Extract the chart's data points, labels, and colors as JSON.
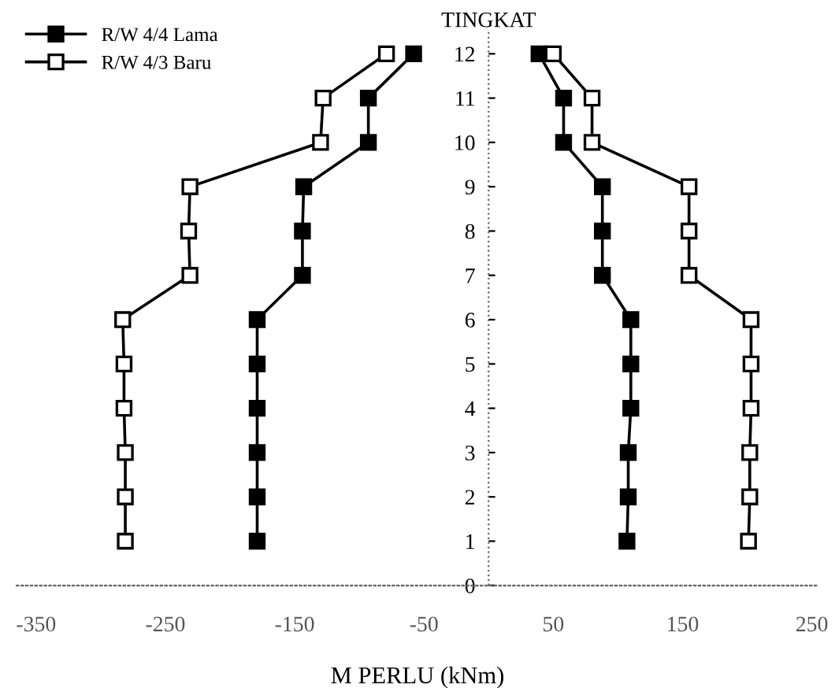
{
  "chart_data": {
    "type": "line",
    "orientation": "horizontal",
    "xlabel": "M PERLU (kNm)",
    "ylabel": "TINGKAT",
    "x": [
      12,
      11,
      10,
      9,
      8,
      7,
      6,
      5,
      4,
      3,
      2,
      1
    ],
    "series": [
      {
        "name": "R/W 4/4 Lama",
        "color": "#000000",
        "marker": "square",
        "values": [
          -58,
          -93,
          -93,
          -143,
          -144,
          -144,
          -179,
          -179,
          -179,
          -179,
          -179,
          -179
        ]
      },
      {
        "name": "R/W 4/3 Baru",
        "color": "#000000",
        "marker": "square",
        "values": [
          -79,
          -128,
          -130,
          -231,
          -232,
          -231,
          -283,
          -282,
          -282,
          -281,
          -281,
          -281
        ]
      },
      {
        "color": "#000000",
        "marker": "square",
        "values": [
          39,
          58,
          58,
          88,
          88,
          88,
          110,
          110,
          110,
          108,
          108,
          107
        ]
      },
      {
        "color": "#000000",
        "marker": "square",
        "values": [
          50,
          80,
          80,
          155,
          155,
          155,
          203,
          203,
          203,
          202,
          202,
          201
        ]
      }
    ],
    "xlim": [
      -365,
      255
    ],
    "xticks": [
      -350,
      -250,
      -150,
      -50,
      50,
      150,
      250
    ],
    "ylim": [
      0,
      12.5
    ],
    "yticks": [
      0,
      1,
      2,
      3,
      4,
      5,
      6,
      7,
      8,
      9,
      10,
      11,
      12
    ],
    "ref_lines": [
      {
        "axis": "x",
        "value": 0,
        "color": "#666666",
        "line_style": "dotted"
      }
    ],
    "legend": "top left",
    "grid": false,
    "line_style": "solid"
  }
}
